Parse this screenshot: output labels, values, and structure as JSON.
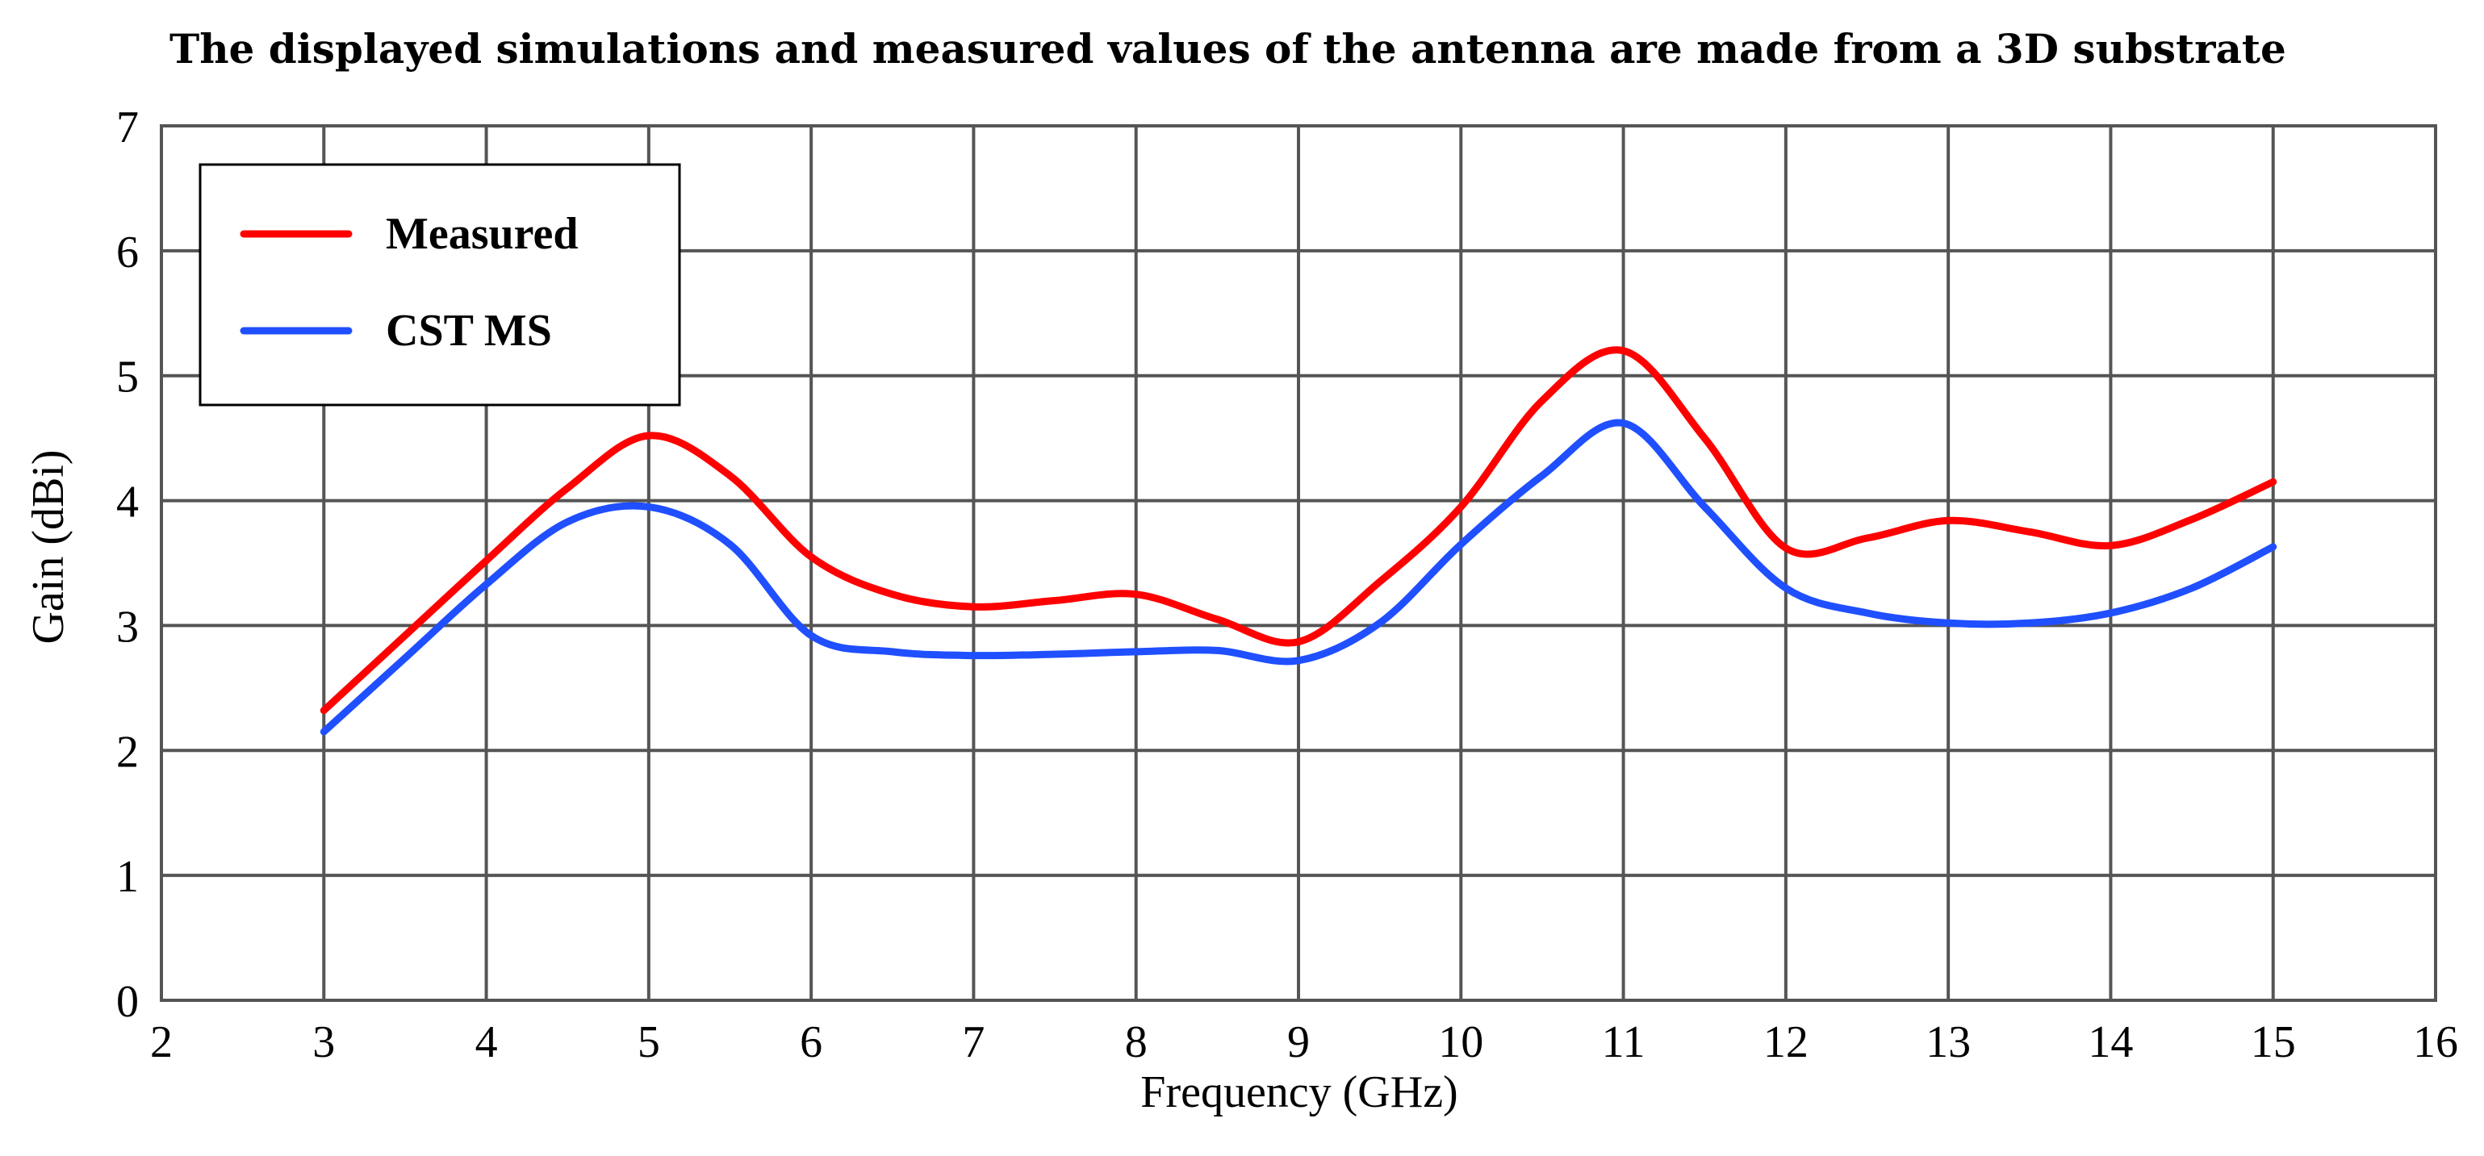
{
  "chart_data": {
    "type": "line",
    "title": "The displayed simulations and measured values of the antenna are made from a 3D substrate",
    "xlabel": "Frequency (GHz)",
    "ylabel": "Gain (dBi)",
    "xlim": [
      2,
      16
    ],
    "ylim": [
      0,
      7
    ],
    "x_ticks": [
      "2",
      "3",
      "4",
      "5",
      "6",
      "7",
      "8",
      "9",
      "10",
      "11",
      "12",
      "13",
      "14",
      "15",
      "16"
    ],
    "y_ticks": [
      "0",
      "1",
      "2",
      "3",
      "4",
      "5",
      "6",
      "7"
    ],
    "grid": true,
    "legend_position": "top-left",
    "series": [
      {
        "name": "Measured",
        "color": "#ff0000",
        "x": [
          3,
          3.5,
          4,
          4.5,
          5,
          5.5,
          6,
          6.5,
          7,
          7.5,
          8,
          8.5,
          9,
          9.5,
          10,
          10.5,
          11,
          11.5,
          12,
          12.5,
          13,
          13.5,
          14,
          14.5,
          15
        ],
        "y": [
          2.32,
          2.92,
          3.52,
          4.1,
          4.52,
          4.2,
          3.55,
          3.25,
          3.15,
          3.2,
          3.25,
          3.05,
          2.87,
          3.35,
          3.95,
          4.8,
          5.2,
          4.5,
          3.62,
          3.7,
          3.84,
          3.75,
          3.64,
          3.85,
          4.15
        ]
      },
      {
        "name": "CST MS",
        "color": "#1f4fff",
        "x": [
          3,
          3.5,
          4,
          4.5,
          5,
          5.5,
          6,
          6.5,
          7,
          7.5,
          8,
          8.5,
          9,
          9.5,
          10,
          10.5,
          11,
          11.5,
          12,
          12.5,
          13,
          13.5,
          14,
          14.5,
          15
        ],
        "y": [
          2.15,
          2.74,
          3.33,
          3.83,
          3.95,
          3.65,
          2.92,
          2.79,
          2.76,
          2.77,
          2.79,
          2.8,
          2.72,
          3.02,
          3.65,
          4.2,
          4.62,
          3.95,
          3.3,
          3.1,
          3.02,
          3.02,
          3.1,
          3.3,
          3.63
        ]
      }
    ]
  }
}
